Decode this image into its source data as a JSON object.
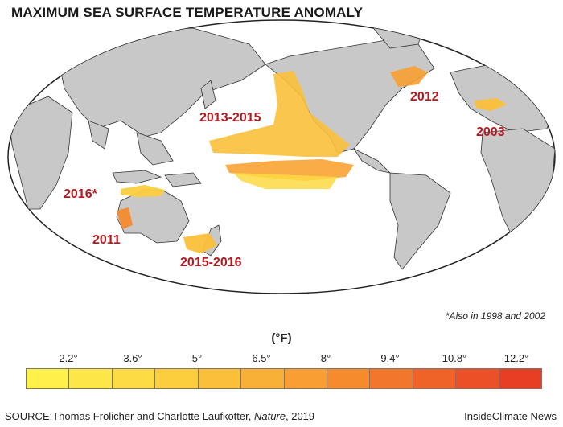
{
  "title": "MAXIMUM SEA SURFACE TEMPERATURE ANOMALY",
  "events": [
    {
      "label": "2013-2015"
    },
    {
      "label": "2012"
    },
    {
      "label": "2003"
    },
    {
      "label": "2016*"
    },
    {
      "label": "2011"
    },
    {
      "label": "2015-2016"
    }
  ],
  "footnote": "*Also in 1998 and 2002",
  "legend": {
    "unit": "(°F)",
    "ticks": [
      "2.2°",
      "3.6°",
      "5°",
      "6.5°",
      "8°",
      "9.4°",
      "10.8°",
      "12.2°"
    ],
    "colors": [
      "#fff04a",
      "#fde648",
      "#fddb44",
      "#fcce3e",
      "#fbc03a",
      "#f9b036",
      "#f89e32",
      "#f68b2e",
      "#f3772b",
      "#f06328",
      "#ec5026",
      "#e83e24"
    ]
  },
  "source": {
    "prefix": "SOURCE:Thomas Frölicher and Charlotte Laufkötter, ",
    "journal": "Nature",
    "suffix": ", 2019"
  },
  "credit": "InsideClimate News",
  "colors": {
    "ocean": "#ffffff",
    "land": "#c8c8c8",
    "coast": "#333333",
    "label": "#b5191f"
  }
}
